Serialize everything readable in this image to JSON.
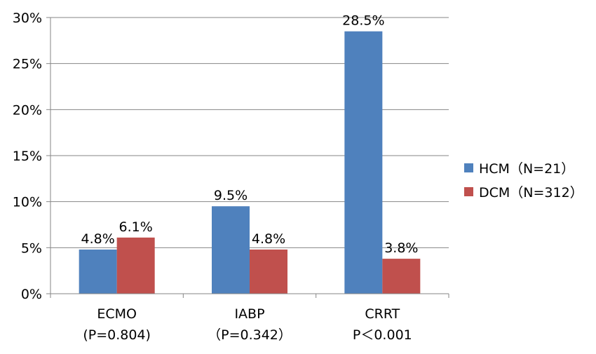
{
  "chart_data": {
    "type": "bar",
    "categories": [
      {
        "line1": "ECMO",
        "line2": "(P=0.804)"
      },
      {
        "line1": "IABP",
        "line2": "（P=0.342）"
      },
      {
        "line1": "CRRT",
        "line2": "P＜0.001"
      }
    ],
    "series": [
      {
        "name": "HCM（N=21）",
        "color": "#4f81bd",
        "values": [
          4.8,
          9.5,
          28.5
        ],
        "labels": [
          "4.8%",
          "9.5%",
          "28.5%"
        ]
      },
      {
        "name": "DCM（N=312）",
        "color": "#c0504d",
        "values": [
          6.1,
          4.8,
          3.8
        ],
        "labels": [
          "6.1%",
          "4.8%",
          "3.8%"
        ]
      }
    ],
    "y_ticks": [
      "0%",
      "5%",
      "10%",
      "15%",
      "20%",
      "25%",
      "30%"
    ],
    "ylim": [
      0,
      30
    ],
    "grid": true,
    "legend_position": "right"
  }
}
